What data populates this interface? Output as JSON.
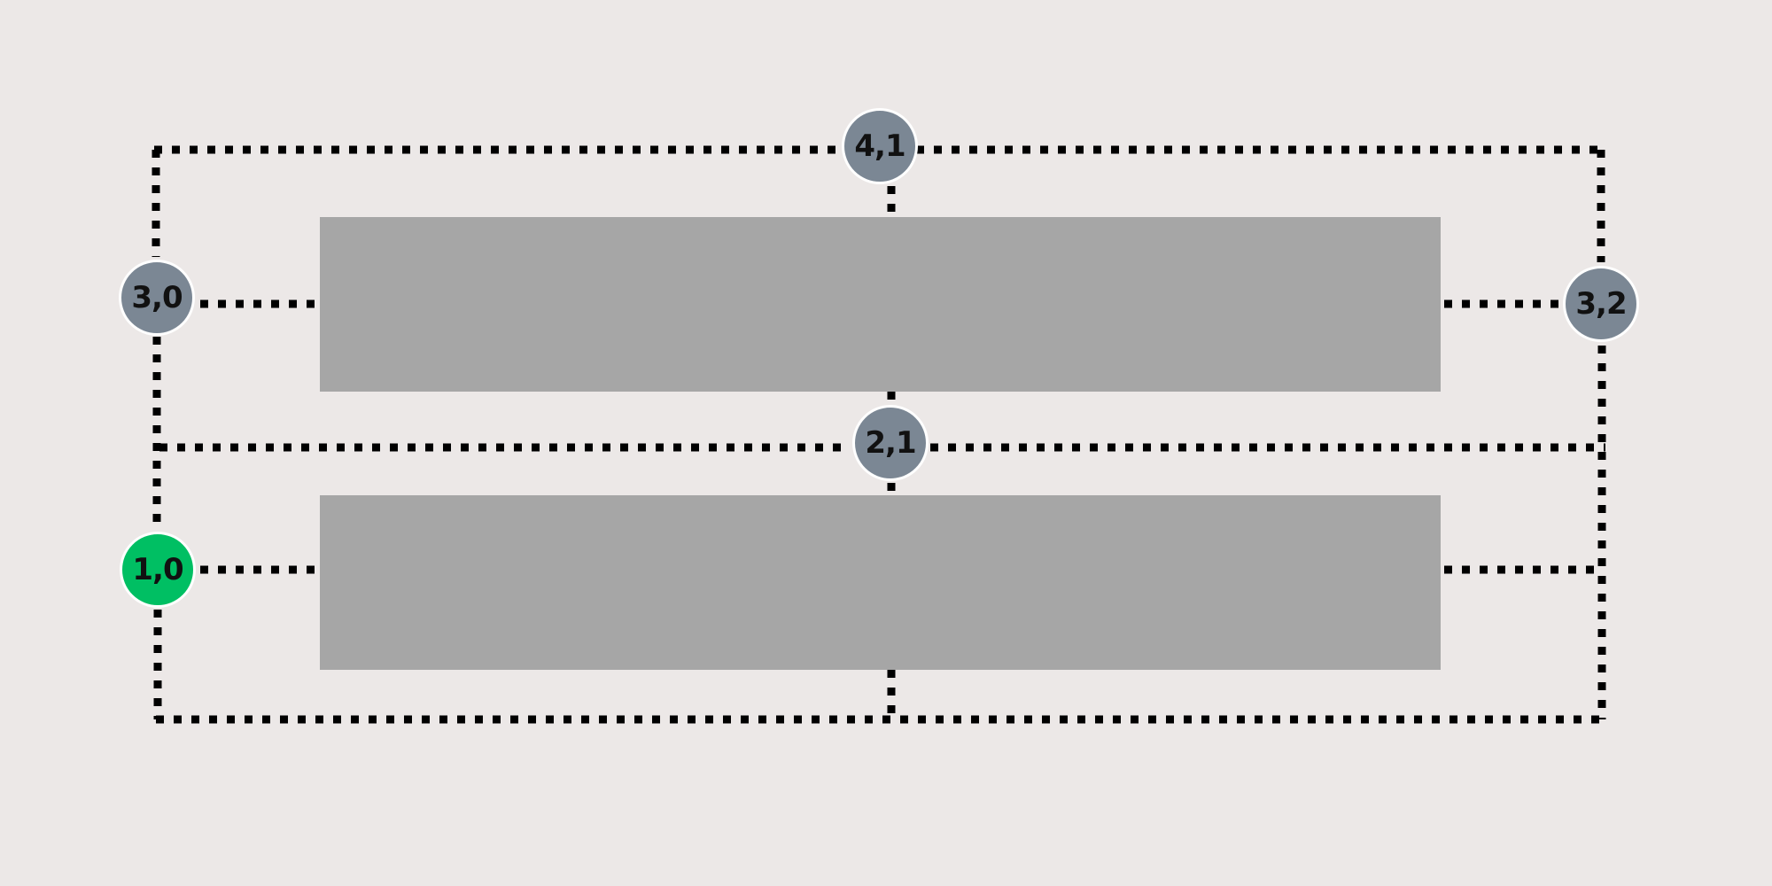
{
  "colors": {
    "background": "#ece8e7",
    "block_fill": "#a6a6a6",
    "node_default": "#7b8794",
    "node_active": "#00bf63",
    "edge": "#000000",
    "node_border": "#ffffff"
  },
  "blocks": [
    {
      "id": "block-top"
    },
    {
      "id": "block-bottom"
    }
  ],
  "nodes": [
    {
      "id": "node-4-1",
      "label": "4,1",
      "state": "default"
    },
    {
      "id": "node-3-0",
      "label": "3,0",
      "state": "default"
    },
    {
      "id": "node-3-2",
      "label": "3,2",
      "state": "default"
    },
    {
      "id": "node-2-1",
      "label": "2,1",
      "state": "default"
    },
    {
      "id": "node-1-0",
      "label": "1,0",
      "state": "active"
    }
  ],
  "edge_style": "dotted"
}
